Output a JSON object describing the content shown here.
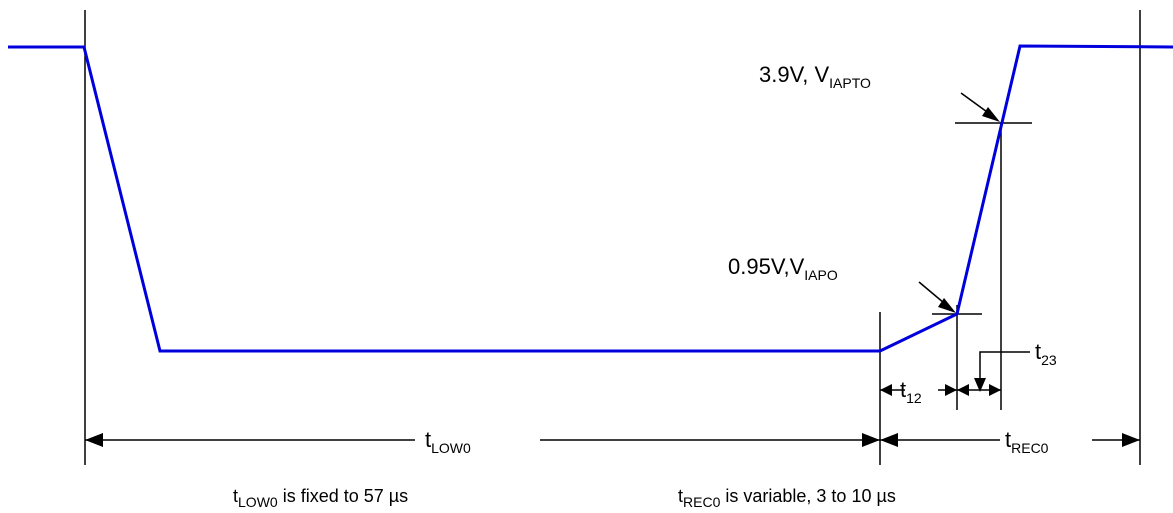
{
  "colors": {
    "waveform": "#0000dd",
    "lines": "#000000",
    "background": "#ffffff"
  },
  "labels": {
    "v_iapto": {
      "main": "3.9V, V",
      "sub": "IAPTO"
    },
    "v_iapo": {
      "main": "0.95V,V",
      "sub": "IAPO"
    },
    "t23": {
      "main": "t",
      "sub": "23"
    },
    "t12": {
      "main": "t",
      "sub": "12"
    },
    "t_low0": {
      "main": "t",
      "sub": "LOW0"
    },
    "t_rec0": {
      "main": "t",
      "sub": "REC0"
    }
  },
  "notes": {
    "low0": {
      "pre": "t",
      "sub": "LOW0",
      "post": " is fixed to 57 µs"
    },
    "rec0": {
      "pre": "t",
      "sub": "REC0",
      "post": " is variable, 3 to 10 µs"
    }
  }
}
